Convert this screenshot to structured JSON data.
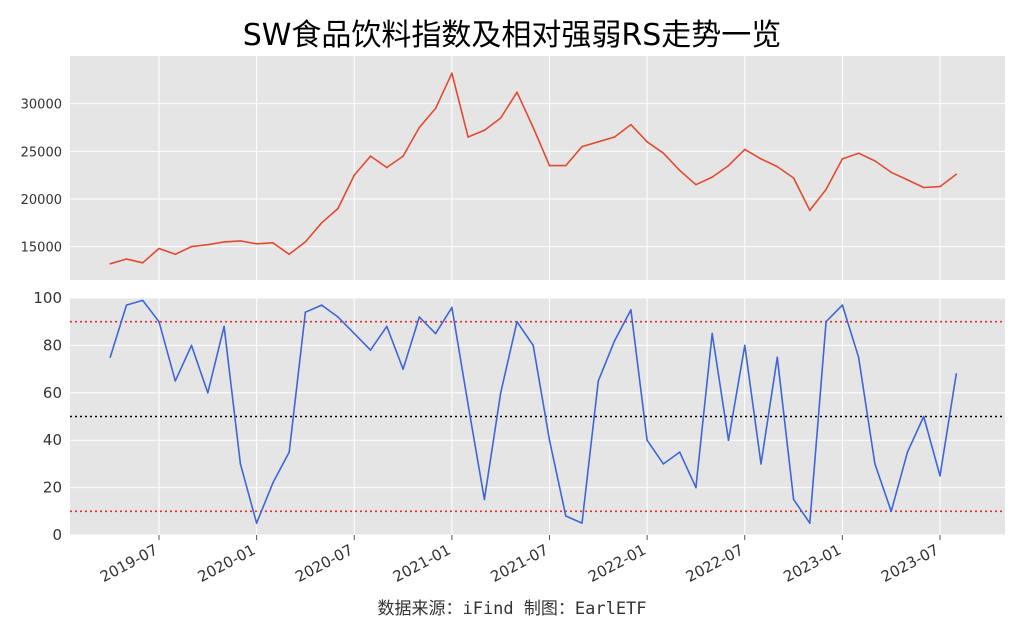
{
  "title": "SW食品饮料指数及相对强弱RS走势一览",
  "source": "数据来源：iFind 制图：EarlETF",
  "colors": {
    "price_line": "#e24a33",
    "rs_line": "#3e66d6",
    "panel_bg": "#e5e5e5",
    "grid": "#ffffff",
    "ref_red": "#e03030",
    "ref_black": "#000000"
  },
  "x_axis": {
    "ticks": [
      "2019-07",
      "2020-01",
      "2020-07",
      "2021-01",
      "2021-07",
      "2022-01",
      "2022-07",
      "2023-01",
      "2023-07"
    ]
  },
  "chart_data": [
    {
      "type": "line",
      "title": "",
      "xlabel": "",
      "ylabel": "",
      "ylim": [
        11500,
        35000
      ],
      "yticks": [
        15000,
        20000,
        25000,
        30000
      ],
      "grid": true,
      "series": [
        {
          "x": [
            "2019-04",
            "2019-05",
            "2019-06",
            "2019-07",
            "2019-08",
            "2019-09",
            "2019-10",
            "2019-11",
            "2019-12",
            "2020-01",
            "2020-02",
            "2020-03",
            "2020-04",
            "2020-05",
            "2020-06",
            "2020-07",
            "2020-08",
            "2020-09",
            "2020-10",
            "2020-11",
            "2020-12",
            "2021-01",
            "2021-02",
            "2021-03",
            "2021-04",
            "2021-05",
            "2021-06",
            "2021-07",
            "2021-08",
            "2021-09",
            "2021-10",
            "2021-11",
            "2021-12",
            "2022-01",
            "2022-02",
            "2022-03",
            "2022-04",
            "2022-05",
            "2022-06",
            "2022-07",
            "2022-08",
            "2022-09",
            "2022-10",
            "2022-11",
            "2022-12",
            "2023-01",
            "2023-02",
            "2023-03",
            "2023-04",
            "2023-05",
            "2023-06",
            "2023-07",
            "2023-08"
          ],
          "values": [
            13200,
            13700,
            13300,
            14800,
            14200,
            15000,
            15200,
            15500,
            15600,
            15300,
            15400,
            14200,
            15500,
            17500,
            19000,
            22500,
            24500,
            23300,
            24500,
            27500,
            29500,
            33200,
            26500,
            27200,
            28500,
            31200,
            27500,
            23500,
            23500,
            25500,
            26000,
            26500,
            27800,
            26000,
            24800,
            23000,
            21500,
            22300,
            23500,
            25200,
            24200,
            23400,
            22200,
            18800,
            21000,
            24200,
            24800,
            24000,
            22800,
            22000,
            21200,
            21300,
            22600
          ]
        }
      ]
    },
    {
      "type": "line",
      "title": "",
      "xlabel": "",
      "ylabel": "",
      "ylim": [
        0,
        100
      ],
      "yticks": [
        0,
        20,
        40,
        60,
        80,
        100
      ],
      "grid": true,
      "reference_lines": [
        90,
        50,
        10
      ],
      "series": [
        {
          "x": [
            "2019-04",
            "2019-05",
            "2019-06",
            "2019-07",
            "2019-08",
            "2019-09",
            "2019-10",
            "2019-11",
            "2019-12",
            "2020-01",
            "2020-02",
            "2020-03",
            "2020-04",
            "2020-05",
            "2020-06",
            "2020-07",
            "2020-08",
            "2020-09",
            "2020-10",
            "2020-11",
            "2020-12",
            "2021-01",
            "2021-02",
            "2021-03",
            "2021-04",
            "2021-05",
            "2021-06",
            "2021-07",
            "2021-08",
            "2021-09",
            "2021-10",
            "2021-11",
            "2021-12",
            "2022-01",
            "2022-02",
            "2022-03",
            "2022-04",
            "2022-05",
            "2022-06",
            "2022-07",
            "2022-08",
            "2022-09",
            "2022-10",
            "2022-11",
            "2022-12",
            "2023-01",
            "2023-02",
            "2023-03",
            "2023-04",
            "2023-05",
            "2023-06",
            "2023-07",
            "2023-08"
          ],
          "values": [
            75,
            97,
            99,
            90,
            65,
            80,
            60,
            88,
            30,
            5,
            22,
            35,
            94,
            97,
            92,
            85,
            78,
            88,
            70,
            92,
            85,
            96,
            55,
            15,
            60,
            90,
            80,
            40,
            8,
            5,
            65,
            82,
            95,
            40,
            30,
            35,
            20,
            85,
            40,
            80,
            30,
            75,
            15,
            5,
            90,
            97,
            75,
            30,
            10,
            35,
            50,
            25,
            68
          ]
        }
      ]
    }
  ]
}
